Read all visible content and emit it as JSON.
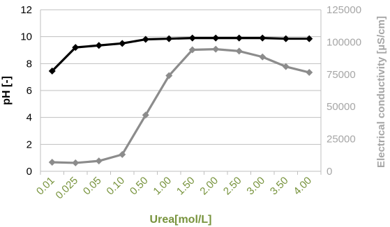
{
  "chart_data": {
    "type": "line",
    "title": "",
    "categories": [
      "0.01",
      "0.025",
      "0.05",
      "0.10",
      "0.50",
      "1.00",
      "1.50",
      "2.00",
      "2.50",
      "3.00",
      "3.50",
      "4.00"
    ],
    "xlabel": "Urea[mol/L]",
    "ylabel": "pH [-]",
    "y2label": "Electrical conductivity [µS/cm]",
    "ylim": [
      0,
      12
    ],
    "y2lim": [
      0,
      125000
    ],
    "yticks": [
      "0",
      "2",
      "4",
      "6",
      "8",
      "10",
      "12"
    ],
    "y2ticks": [
      "0",
      "25000",
      "50000",
      "75000",
      "100000",
      "125000"
    ],
    "grid": true,
    "legend": "none",
    "series": [
      {
        "axis": "left",
        "color": "#000000",
        "marker": "diamond",
        "values": [
          7.45,
          9.2,
          9.35,
          9.5,
          9.8,
          9.85,
          9.9,
          9.9,
          9.9,
          9.9,
          9.85,
          9.85
        ]
      },
      {
        "axis": "right",
        "color": "#8c8c8c",
        "marker": "diamond",
        "values": [
          7000,
          6500,
          8000,
          13000,
          43500,
          74000,
          94000,
          94500,
          93000,
          88500,
          81000,
          76500
        ]
      }
    ],
    "colors": {
      "xaxis": "#77933c",
      "y2axis": "#a6a6a6",
      "yaxis": "#000000",
      "grid": "#bfbfbf"
    }
  }
}
